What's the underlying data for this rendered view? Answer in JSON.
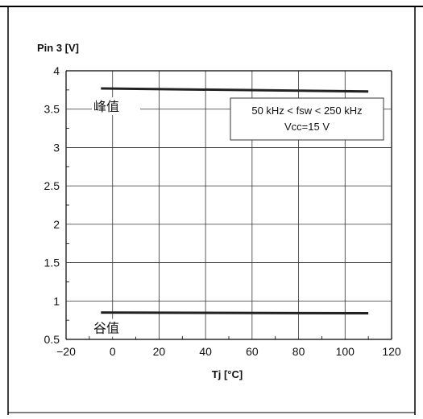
{
  "chart_data": {
    "type": "line",
    "ylabel": "Pin 3 [V]",
    "xlabel": "Tj [°C]",
    "xlim": [
      -20,
      120
    ],
    "ylim": [
      0.5,
      4
    ],
    "xticks": [
      -20,
      0,
      20,
      40,
      60,
      80,
      100,
      120
    ],
    "yticks": [
      0.5,
      1,
      1.5,
      2,
      2.5,
      3,
      3.5,
      4
    ],
    "xtick_labels": [
      "−20",
      "0",
      "20",
      "40",
      "60",
      "80",
      "100",
      "120"
    ],
    "ytick_labels": [
      "0.5",
      "1",
      "1.5",
      "2",
      "2.5",
      "3",
      "3.5",
      "4"
    ],
    "grid": true,
    "series": [
      {
        "name": "峰值",
        "x": [
          -5,
          110
        ],
        "y": [
          3.77,
          3.73
        ]
      },
      {
        "name": "谷值",
        "x": [
          -5,
          110
        ],
        "y": [
          0.85,
          0.84
        ]
      }
    ],
    "annotation": {
      "line1": "50 kHz < fsw < 250 kHz",
      "line2": "Vcc=15 V"
    },
    "colors": {
      "series": "#222222",
      "grid": "#333333"
    }
  }
}
